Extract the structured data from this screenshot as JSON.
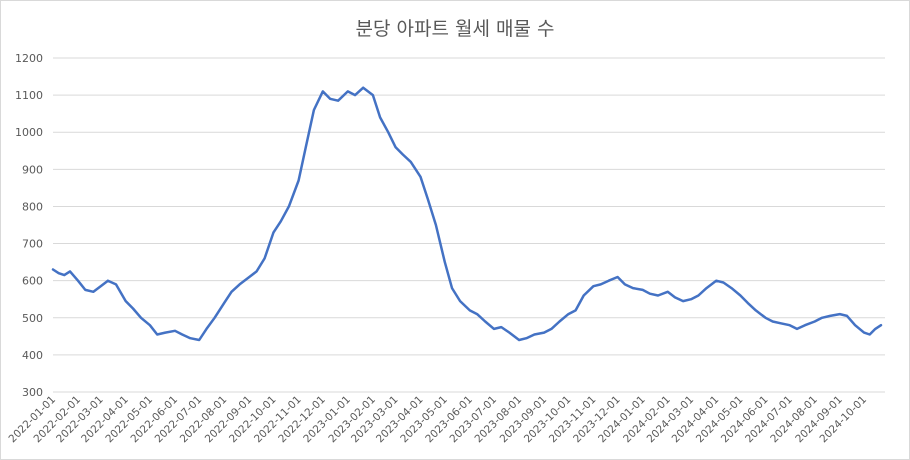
{
  "chart_data": {
    "type": "line",
    "title": "분당 아파트 월세 매물 수",
    "xlabel": "",
    "ylabel": "",
    "ylim": [
      300,
      1200
    ],
    "yticks": [
      300,
      400,
      500,
      600,
      700,
      800,
      900,
      1000,
      1100,
      1200
    ],
    "grid": true,
    "legend": "none",
    "x_tick_labels": [
      "2022-01-01",
      "2022-02-01",
      "2022-03-01",
      "2022-04-01",
      "2022-05-01",
      "2022-06-01",
      "2022-07-01",
      "2022-08-01",
      "2022-09-01",
      "2022-10-01",
      "2022-11-01",
      "2022-12-01",
      "2023-01-01",
      "2023-02-01",
      "2023-03-01",
      "2023-04-01",
      "2023-05-01",
      "2023-06-01",
      "2023-07-01",
      "2023-08-01",
      "2023-09-01",
      "2023-10-01",
      "2023-11-01",
      "2023-12-01",
      "2024-01-01",
      "2024-02-01",
      "2024-03-01",
      "2024-04-01",
      "2024-05-01",
      "2024-06-01",
      "2024-07-01",
      "2024-08-01",
      "2024-09-01",
      "2024-10-01"
    ],
    "series": [
      {
        "color": "#4472c4",
        "x": [
          "2022-01-01",
          "2022-01-08",
          "2022-01-15",
          "2022-01-22",
          "2022-02-01",
          "2022-02-10",
          "2022-02-20",
          "2022-03-01",
          "2022-03-10",
          "2022-03-20",
          "2022-04-01",
          "2022-04-10",
          "2022-04-20",
          "2022-05-01",
          "2022-05-10",
          "2022-05-20",
          "2022-06-01",
          "2022-06-10",
          "2022-06-20",
          "2022-07-01",
          "2022-07-10",
          "2022-07-20",
          "2022-08-01",
          "2022-08-10",
          "2022-08-20",
          "2022-09-01",
          "2022-09-10",
          "2022-09-20",
          "2022-10-01",
          "2022-10-10",
          "2022-10-20",
          "2022-11-01",
          "2022-11-10",
          "2022-11-20",
          "2022-12-01",
          "2022-12-10",
          "2022-12-20",
          "2023-01-01",
          "2023-01-10",
          "2023-01-20",
          "2023-02-01",
          "2023-02-10",
          "2023-02-20",
          "2023-03-01",
          "2023-03-10",
          "2023-03-20",
          "2023-04-01",
          "2023-04-10",
          "2023-04-20",
          "2023-05-01",
          "2023-05-10",
          "2023-05-20",
          "2023-06-01",
          "2023-06-10",
          "2023-06-20",
          "2023-07-01",
          "2023-07-10",
          "2023-07-20",
          "2023-08-01",
          "2023-08-10",
          "2023-08-20",
          "2023-09-01",
          "2023-09-10",
          "2023-09-20",
          "2023-10-01",
          "2023-10-10",
          "2023-10-20",
          "2023-11-01",
          "2023-11-10",
          "2023-11-20",
          "2023-12-01",
          "2023-12-10",
          "2023-12-20",
          "2024-01-01",
          "2024-01-10",
          "2024-01-20",
          "2024-02-01",
          "2024-02-10",
          "2024-02-20",
          "2024-03-01",
          "2024-03-10",
          "2024-03-20",
          "2024-04-01",
          "2024-04-10",
          "2024-04-20",
          "2024-05-01",
          "2024-05-10",
          "2024-05-20",
          "2024-06-01",
          "2024-06-10",
          "2024-06-20",
          "2024-07-01",
          "2024-07-10",
          "2024-07-20",
          "2024-08-01",
          "2024-08-10",
          "2024-08-20",
          "2024-09-01",
          "2024-09-10",
          "2024-09-20",
          "2024-10-01",
          "2024-10-08",
          "2024-10-15",
          "2024-10-22"
        ],
        "values": [
          630,
          620,
          615,
          625,
          600,
          575,
          570,
          585,
          600,
          590,
          545,
          525,
          500,
          480,
          455,
          460,
          465,
          455,
          445,
          440,
          470,
          500,
          540,
          570,
          590,
          610,
          625,
          660,
          730,
          760,
          800,
          870,
          960,
          1060,
          1110,
          1090,
          1085,
          1110,
          1100,
          1120,
          1100,
          1040,
          1000,
          960,
          940,
          920,
          880,
          820,
          750,
          650,
          580,
          545,
          520,
          510,
          490,
          470,
          475,
          460,
          440,
          445,
          455,
          460,
          470,
          490,
          510,
          520,
          560,
          585,
          590,
          600,
          610,
          590,
          580,
          575,
          565,
          560,
          570,
          555,
          545,
          550,
          560,
          580,
          600,
          595,
          580,
          560,
          540,
          520,
          500,
          490,
          485,
          480,
          470,
          480,
          490,
          500,
          505,
          510,
          505,
          480,
          460,
          455,
          470,
          480
        ]
      }
    ]
  }
}
